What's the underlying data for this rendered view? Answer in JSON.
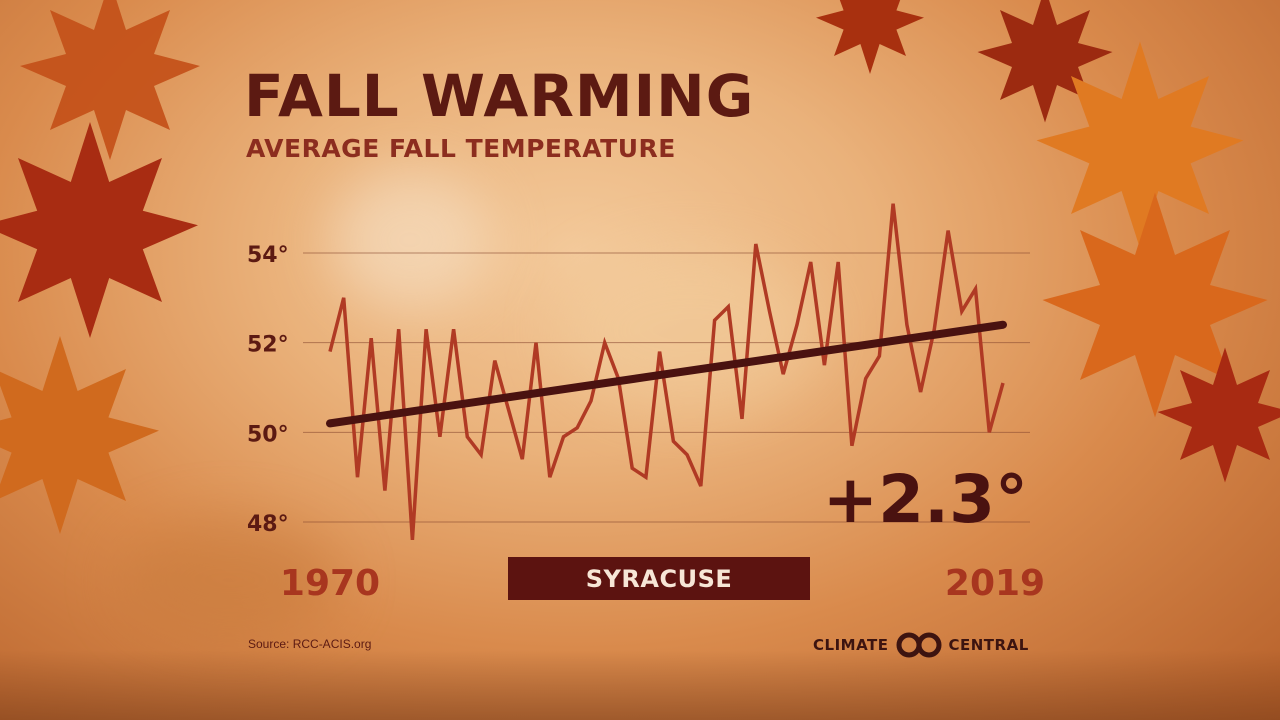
{
  "header": {
    "title": "FALL WARMING",
    "subtitle": "AVERAGE FALL TEMPERATURE"
  },
  "chart_data": {
    "type": "line",
    "x_start_label": "1970",
    "x_end_label": "2019",
    "y_ticks": [
      "48°",
      "50°",
      "52°",
      "54°"
    ],
    "y_tick_values": [
      48,
      50,
      52,
      54
    ],
    "ylim": [
      47.5,
      55.5
    ],
    "xlim": [
      1970,
      2019
    ],
    "grid": true,
    "series": [
      {
        "x": [
          1970,
          1971,
          1972,
          1973,
          1974,
          1975,
          1976,
          1977,
          1978,
          1979,
          1980,
          1981,
          1982,
          1983,
          1984,
          1985,
          1986,
          1987,
          1988,
          1989,
          1990,
          1991,
          1992,
          1993,
          1994,
          1995,
          1996,
          1997,
          1998,
          1999,
          2000,
          2001,
          2002,
          2003,
          2004,
          2005,
          2006,
          2007,
          2008,
          2009,
          2010,
          2011,
          2012,
          2013,
          2014,
          2015,
          2016,
          2017,
          2018,
          2019
        ],
        "values": [
          51.8,
          53.0,
          49.0,
          52.1,
          48.7,
          52.3,
          47.6,
          52.3,
          49.9,
          52.3,
          49.9,
          49.5,
          51.6,
          50.5,
          49.4,
          52.0,
          49.0,
          49.9,
          50.1,
          50.7,
          52.0,
          51.2,
          49.2,
          49.0,
          51.8,
          49.8,
          49.5,
          48.8,
          52.5,
          52.8,
          50.3,
          54.2,
          52.7,
          51.3,
          52.4,
          53.8,
          51.5,
          53.8,
          49.7,
          51.2,
          51.7,
          55.1,
          52.4,
          50.9,
          52.3,
          54.5,
          52.7,
          53.2,
          50.0,
          51.1
        ]
      }
    ],
    "trend": {
      "start": 50.2,
      "end": 52.4
    },
    "change_label": "+2.3°",
    "location": "SYRACUSE",
    "colors": {
      "series": "#b03a24",
      "trend": "#4a1210",
      "grid": "#8a4a30",
      "tick_text": "#5c1a12",
      "year_text": "#a8361f",
      "change_text": "#4a1210"
    }
  },
  "footer": {
    "source": "Source: RCC-ACIS.org",
    "brand_left": "CLIMATE",
    "brand_right": "CENTRAL",
    "brand_icon": "climate-central-logo-icon"
  }
}
